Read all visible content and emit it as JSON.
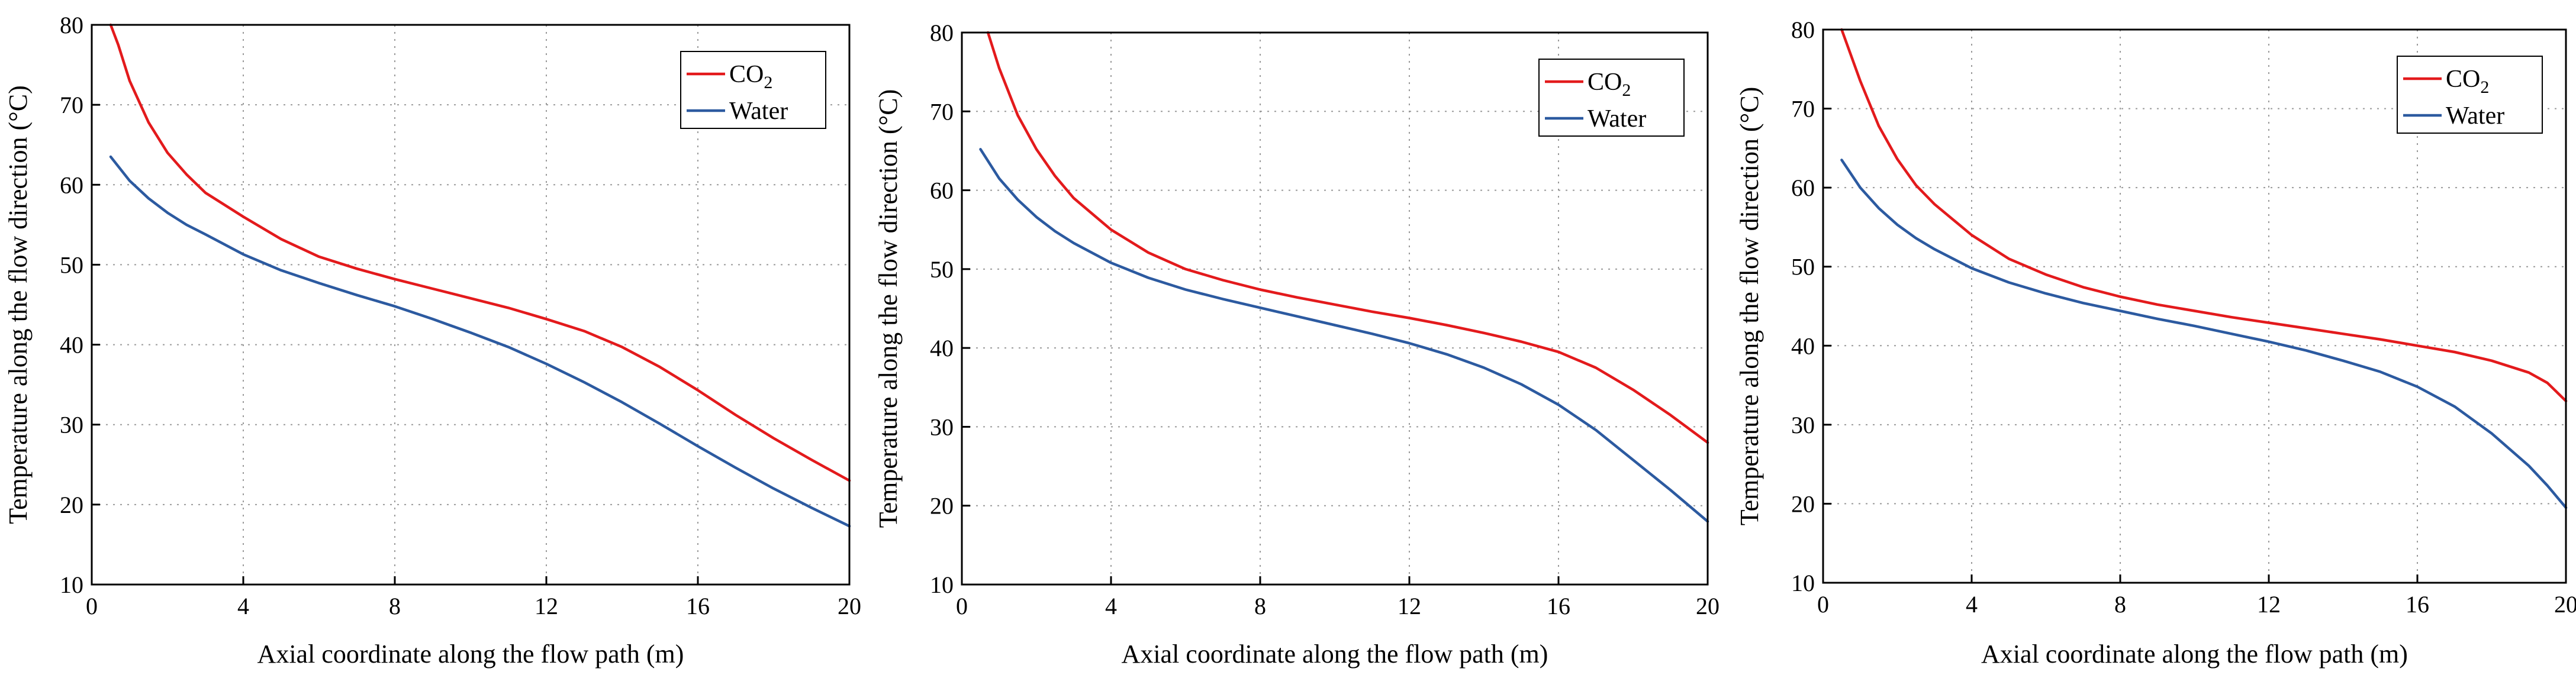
{
  "colors": {
    "co2": "#e31a1c",
    "water": "#2c5aa0"
  },
  "chart_data": [
    {
      "type": "line",
      "xlabel": "Axial coordinate along the flow path (m)",
      "ylabel": "Temperature along the flow direction (°C)",
      "xlim": [
        0,
        20
      ],
      "ylim": [
        10,
        80
      ],
      "x_ticks": [
        0,
        4,
        8,
        12,
        16,
        20
      ],
      "y_ticks": [
        10,
        20,
        30,
        40,
        50,
        60,
        70,
        80
      ],
      "x_tick_labels": [
        "0",
        "4",
        "8",
        "12",
        "16",
        "20"
      ],
      "y_tick_labels": [
        "10",
        "20",
        "30",
        "40",
        "50",
        "60",
        "70",
        "80"
      ],
      "grid": true,
      "legend_position": "top-right",
      "series": [
        {
          "name": "CO2",
          "legend_main": "CO",
          "legend_sub": "2",
          "color_key": "co2",
          "x": [
            0.5,
            0.7,
            1.0,
            1.5,
            2.0,
            2.5,
            3.0,
            4.0,
            5.0,
            6.0,
            7.0,
            8.0,
            9.0,
            10.0,
            11.0,
            12.0,
            13.0,
            14.0,
            15.0,
            16.0,
            17.0,
            18.0,
            19.0,
            20.0
          ],
          "y": [
            80.0,
            77.5,
            73.0,
            67.8,
            64.0,
            61.3,
            59.0,
            56.0,
            53.2,
            51.0,
            49.5,
            48.2,
            47.0,
            45.8,
            44.6,
            43.2,
            41.7,
            39.7,
            37.2,
            34.3,
            31.2,
            28.3,
            25.6,
            23.0
          ]
        },
        {
          "name": "Water",
          "legend_main": "Water",
          "legend_sub": "",
          "color_key": "water",
          "x": [
            0.5,
            1.0,
            1.5,
            2.0,
            2.5,
            3.0,
            4.0,
            5.0,
            6.0,
            7.0,
            8.0,
            9.0,
            10.0,
            11.0,
            12.0,
            13.0,
            14.0,
            15.0,
            16.0,
            17.0,
            18.0,
            19.0,
            20.0
          ],
          "y": [
            63.5,
            60.5,
            58.3,
            56.5,
            55.0,
            53.8,
            51.3,
            49.3,
            47.7,
            46.2,
            44.8,
            43.2,
            41.5,
            39.7,
            37.6,
            35.3,
            32.8,
            30.1,
            27.3,
            24.6,
            22.0,
            19.6,
            17.3
          ]
        }
      ]
    },
    {
      "type": "line",
      "xlabel": "Axial coordinate along the flow path (m)",
      "ylabel": "Temperature along the flow direction (°C)",
      "xlim": [
        0,
        20
      ],
      "ylim": [
        10,
        80
      ],
      "x_ticks": [
        0,
        4,
        8,
        12,
        16,
        20
      ],
      "y_ticks": [
        10,
        20,
        30,
        40,
        50,
        60,
        70,
        80
      ],
      "x_tick_labels": [
        "0",
        "4",
        "8",
        "12",
        "16",
        "20"
      ],
      "y_tick_labels": [
        "10",
        "20",
        "30",
        "40",
        "50",
        "60",
        "70",
        "80"
      ],
      "grid": true,
      "legend_position": "top-right",
      "series": [
        {
          "name": "CO2",
          "legend_main": "CO",
          "legend_sub": "2",
          "color_key": "co2",
          "x": [
            0.7,
            1.0,
            1.5,
            2.0,
            2.5,
            3.0,
            4.0,
            5.0,
            6.0,
            7.0,
            8.0,
            9.0,
            10.0,
            11.0,
            12.0,
            13.0,
            14.0,
            15.0,
            16.0,
            17.0,
            18.0,
            19.0,
            20.0
          ],
          "y": [
            80.0,
            75.5,
            69.5,
            65.2,
            61.8,
            59.0,
            55.0,
            52.1,
            50.0,
            48.6,
            47.4,
            46.4,
            45.5,
            44.6,
            43.8,
            42.9,
            41.9,
            40.8,
            39.5,
            37.5,
            34.7,
            31.5,
            28.0
          ]
        },
        {
          "name": "Water",
          "legend_main": "Water",
          "legend_sub": "",
          "color_key": "water",
          "x": [
            0.5,
            1.0,
            1.5,
            2.0,
            2.5,
            3.0,
            4.0,
            5.0,
            6.0,
            7.0,
            8.0,
            9.0,
            10.0,
            11.0,
            12.0,
            13.0,
            14.0,
            15.0,
            16.0,
            17.0,
            18.0,
            19.0,
            20.0
          ],
          "y": [
            65.2,
            61.5,
            58.8,
            56.6,
            54.8,
            53.3,
            50.8,
            48.9,
            47.4,
            46.2,
            45.1,
            44.0,
            42.9,
            41.8,
            40.6,
            39.2,
            37.5,
            35.4,
            32.8,
            29.6,
            25.8,
            22.0,
            18.0
          ]
        }
      ]
    },
    {
      "type": "line",
      "xlabel": "Axial coordinate along the flow path (m)",
      "ylabel": "Temperature along the flow direction (°C)",
      "xlim": [
        0,
        20
      ],
      "ylim": [
        10,
        80
      ],
      "x_ticks": [
        0,
        4,
        8,
        12,
        16,
        20
      ],
      "y_ticks": [
        10,
        20,
        30,
        40,
        50,
        60,
        70,
        80
      ],
      "x_tick_labels": [
        "0",
        "4",
        "8",
        "12",
        "16",
        "20"
      ],
      "y_tick_labels": [
        "10",
        "20",
        "30",
        "40",
        "50",
        "60",
        "70",
        "80"
      ],
      "grid": true,
      "legend_position": "top-right",
      "series": [
        {
          "name": "CO2",
          "legend_main": "CO",
          "legend_sub": "2",
          "color_key": "co2",
          "x": [
            0.5,
            1.0,
            1.5,
            2.0,
            2.5,
            3.0,
            4.0,
            5.0,
            6.0,
            7.0,
            8.0,
            9.0,
            10.0,
            11.0,
            12.0,
            13.0,
            14.0,
            15.0,
            16.0,
            17.0,
            18.0,
            19.0,
            19.5,
            20.0
          ],
          "y": [
            80.0,
            73.5,
            67.8,
            63.6,
            60.3,
            57.9,
            54.0,
            51.0,
            49.0,
            47.4,
            46.2,
            45.2,
            44.4,
            43.6,
            42.9,
            42.2,
            41.5,
            40.8,
            40.0,
            39.2,
            38.1,
            36.6,
            35.3,
            33.0
          ]
        },
        {
          "name": "Water",
          "legend_main": "Water",
          "legend_sub": "",
          "color_key": "water",
          "x": [
            0.5,
            1.0,
            1.5,
            2.0,
            2.5,
            3.0,
            4.0,
            5.0,
            6.0,
            7.0,
            8.0,
            9.0,
            10.0,
            11.0,
            12.0,
            13.0,
            14.0,
            15.0,
            16.0,
            17.0,
            18.0,
            19.0,
            19.5,
            20.0
          ],
          "y": [
            63.5,
            60.0,
            57.4,
            55.3,
            53.6,
            52.2,
            49.8,
            48.0,
            46.6,
            45.4,
            44.4,
            43.4,
            42.5,
            41.5,
            40.5,
            39.4,
            38.1,
            36.7,
            34.8,
            32.3,
            28.9,
            24.8,
            22.3,
            19.5
          ]
        }
      ]
    }
  ]
}
